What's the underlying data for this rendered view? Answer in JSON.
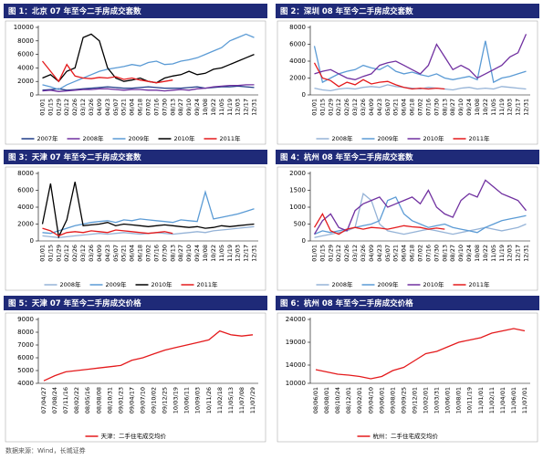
{
  "chart_data": [
    {
      "type": "line",
      "title": "图 1：北京 07 年至今二手房成交套数",
      "categories": [
        "01/01",
        "01/15",
        "01/29",
        "02/12",
        "02/26",
        "03/12",
        "03/26",
        "04/09",
        "04/23",
        "05/07",
        "05/21",
        "06/04",
        "06/18",
        "07/02",
        "07/16",
        "07/30",
        "08/13",
        "08/27",
        "09/10",
        "09/24",
        "10/08",
        "10/22",
        "11/05",
        "11/19",
        "12/03",
        "12/17",
        "12/31"
      ],
      "ylim": [
        0,
        10000
      ],
      "yticks": [
        0,
        2000,
        4000,
        6000,
        8000,
        10000
      ],
      "legend": "bottom",
      "series": [
        {
          "name": "2007年",
          "color": "#1f3c88",
          "values": [
            700,
            800,
            900,
            700,
            800,
            900,
            1000,
            1100,
            1200,
            1100,
            1000,
            1000,
            1100,
            1200,
            1100,
            1000,
            1000,
            1000,
            1100,
            1200,
            1000,
            1100,
            1200,
            1200,
            1300,
            1200,
            1100
          ]
        },
        {
          "name": "2008年",
          "color": "#7030a0",
          "values": [
            600,
            700,
            500,
            600,
            700,
            800,
            800,
            900,
            900,
            800,
            700,
            800,
            800,
            700,
            700,
            600,
            700,
            800,
            700,
            900,
            1000,
            1200,
            1300,
            1400,
            1400,
            1500,
            1500
          ]
        },
        {
          "name": "2009年",
          "color": "#5b9bd5",
          "values": [
            1500,
            1200,
            800,
            1500,
            2000,
            2500,
            3000,
            3500,
            3800,
            4000,
            4200,
            4500,
            4300,
            4800,
            5000,
            4500,
            4600,
            5000,
            5200,
            5500,
            6000,
            6500,
            7000,
            8000,
            8500,
            9000,
            8500
          ]
        },
        {
          "name": "2010年",
          "color": "#000000",
          "values": [
            2500,
            3000,
            2000,
            3500,
            4000,
            8500,
            9000,
            8000,
            4000,
            2500,
            2000,
            2200,
            2500,
            2000,
            1800,
            2500,
            2800,
            3000,
            3500,
            3000,
            3200,
            3800,
            4000,
            4500,
            5000,
            5500,
            6000
          ]
        },
        {
          "name": "2011年",
          "color": "#e41a1c",
          "values": [
            5000,
            3500,
            2000,
            4500,
            2800,
            2500,
            2400,
            2600,
            2500,
            2700,
            2300,
            2500,
            2200,
            2000,
            1800,
            2000,
            2200,
            null,
            null,
            null,
            null,
            null,
            null,
            null,
            null,
            null,
            null
          ]
        }
      ]
    },
    {
      "type": "line",
      "title": "图 2：深圳 08 年至今二手房成交套数",
      "categories": [
        "01/01",
        "01/15",
        "01/29",
        "02/12",
        "02/26",
        "03/12",
        "03/26",
        "04/09",
        "04/23",
        "05/07",
        "05/21",
        "06/04",
        "06/18",
        "07/02",
        "07/16",
        "07/30",
        "08/13",
        "08/27",
        "09/10",
        "09/24",
        "10/08",
        "10/22",
        "11/05",
        "11/19",
        "12/03",
        "12/17",
        "12/31"
      ],
      "ylim": [
        0,
        8000
      ],
      "yticks": [
        0,
        2000,
        4000,
        6000,
        8000
      ],
      "legend": "bottom",
      "series": [
        {
          "name": "2008年",
          "color": "#95b3d7",
          "values": [
            800,
            600,
            500,
            700,
            800,
            700,
            900,
            1000,
            900,
            1200,
            1000,
            900,
            800,
            700,
            900,
            800,
            700,
            600,
            800,
            900,
            700,
            800,
            700,
            1000,
            900,
            800,
            700
          ]
        },
        {
          "name": "2009年",
          "color": "#5b9bd5",
          "values": [
            5800,
            1500,
            2000,
            2500,
            2800,
            3000,
            3500,
            3200,
            3000,
            3500,
            2800,
            2500,
            2700,
            2400,
            2200,
            2500,
            2000,
            1800,
            2000,
            2200,
            1800,
            6400,
            1500,
            2000,
            2200,
            2500,
            2800
          ]
        },
        {
          "name": "2010年",
          "color": "#7030a0",
          "values": [
            2500,
            2800,
            3000,
            2500,
            2000,
            1800,
            2200,
            2500,
            3500,
            3800,
            4000,
            3500,
            3000,
            2500,
            3500,
            6000,
            4500,
            3000,
            3500,
            3000,
            2000,
            2500,
            3000,
            3500,
            4500,
            5000,
            7200
          ]
        },
        {
          "name": "2011年",
          "color": "#e41a1c",
          "values": [
            3800,
            2000,
            1700,
            1000,
            1500,
            1200,
            1800,
            1300,
            1500,
            1600,
            1200,
            900,
            700,
            800,
            700,
            800,
            700,
            null,
            null,
            null,
            null,
            null,
            null,
            null,
            null,
            null,
            null
          ]
        }
      ]
    },
    {
      "type": "line",
      "title": "图 3：天津 07 年至今二手房成交套数",
      "categories": [
        "01/01",
        "01/15",
        "01/29",
        "02/12",
        "02/26",
        "03/12",
        "03/26",
        "04/09",
        "04/23",
        "05/07",
        "05/21",
        "06/04",
        "06/18",
        "07/02",
        "07/16",
        "07/30",
        "08/13",
        "08/27",
        "09/10",
        "09/24",
        "10/08",
        "10/22",
        "11/05",
        "11/19",
        "12/03",
        "12/17",
        "12/31"
      ],
      "ylim": [
        0,
        8000
      ],
      "yticks": [
        0,
        2000,
        4000,
        6000,
        8000
      ],
      "legend": "bottom",
      "series": [
        {
          "name": "2008年",
          "color": "#95b3d7",
          "values": [
            600,
            500,
            400,
            500,
            600,
            700,
            800,
            900,
            800,
            900,
            1000,
            900,
            800,
            900,
            1000,
            900,
            800,
            900,
            1000,
            1100,
            1000,
            1200,
            1300,
            1400,
            1500,
            1600,
            1700
          ]
        },
        {
          "name": "2009年",
          "color": "#5b9bd5",
          "values": [
            1000,
            900,
            1200,
            1500,
            1800,
            2000,
            2200,
            2300,
            2400,
            2200,
            2500,
            2400,
            2600,
            2500,
            2400,
            2300,
            2200,
            2500,
            2400,
            2300,
            5800,
            2600,
            2800,
            3000,
            3200,
            3500,
            3800
          ]
        },
        {
          "name": "2010年",
          "color": "#000000",
          "values": [
            2000,
            6800,
            500,
            2500,
            7000,
            1800,
            1900,
            2000,
            2200,
            1800,
            2000,
            1900,
            1800,
            1700,
            1800,
            1900,
            1800,
            1700,
            1600,
            1700,
            1500,
            1600,
            1800,
            1700,
            1800,
            1900,
            2000
          ]
        },
        {
          "name": "2011年",
          "color": "#e41a1c",
          "values": [
            1500,
            1200,
            600,
            1000,
            1100,
            1000,
            1200,
            1100,
            1000,
            1300,
            1200,
            1100,
            1000,
            900,
            1000,
            1100,
            900,
            null,
            null,
            null,
            null,
            null,
            null,
            null,
            null,
            null,
            null
          ]
        }
      ]
    },
    {
      "type": "line",
      "title": "图 4：杭州 08 年至今二手房成交套数",
      "categories": [
        "01/01",
        "01/15",
        "01/29",
        "02/12",
        "02/26",
        "03/12",
        "03/26",
        "04/09",
        "04/23",
        "05/07",
        "05/21",
        "06/04",
        "06/18",
        "07/02",
        "07/16",
        "07/30",
        "08/13",
        "08/27",
        "09/10",
        "09/24",
        "10/08",
        "10/22",
        "11/05",
        "11/19",
        "12/03",
        "12/17",
        "12/31"
      ],
      "ylim": [
        0,
        2000
      ],
      "yticks": [
        0,
        500,
        1000,
        1500,
        2000
      ],
      "legend": "bottom",
      "series": [
        {
          "name": "2008年",
          "color": "#95b3d7",
          "values": [
            100,
            150,
            200,
            250,
            300,
            400,
            1400,
            1200,
            500,
            300,
            250,
            200,
            250,
            300,
            350,
            300,
            250,
            200,
            250,
            300,
            350,
            400,
            350,
            300,
            350,
            400,
            500
          ]
        },
        {
          "name": "2009年",
          "color": "#5b9bd5",
          "values": [
            200,
            300,
            250,
            300,
            350,
            400,
            450,
            500,
            600,
            1200,
            1300,
            800,
            600,
            500,
            400,
            450,
            500,
            400,
            350,
            300,
            250,
            400,
            500,
            600,
            650,
            700,
            750
          ]
        },
        {
          "name": "2010年",
          "color": "#7030a0",
          "values": [
            200,
            600,
            800,
            400,
            300,
            900,
            1100,
            1200,
            1300,
            1000,
            1100,
            1200,
            1300,
            1100,
            1500,
            1000,
            800,
            700,
            1200,
            1400,
            1300,
            1800,
            1600,
            1400,
            1300,
            1200,
            900
          ]
        },
        {
          "name": "2011年",
          "color": "#e41a1c",
          "values": [
            400,
            800,
            300,
            200,
            350,
            400,
            350,
            400,
            380,
            350,
            400,
            450,
            420,
            400,
            350,
            380,
            350,
            null,
            null,
            null,
            null,
            null,
            null,
            null,
            null,
            null,
            null
          ]
        }
      ]
    },
    {
      "type": "line",
      "title": "图 5：天津 07 年至今二手房成交价格",
      "categories": [
        "07/04/27",
        "07/08/24",
        "07/11/16",
        "08/02/22",
        "08/05/16",
        "08/08/08",
        "08/10/31",
        "09/01/23",
        "09/04/17",
        "09/07/10",
        "09/10/02",
        "09/12/25",
        "10/03/19",
        "10/06/11",
        "10/09/03",
        "10/11/26",
        "11/02/18",
        "11/05/13",
        "11/07/08",
        "11/07/29"
      ],
      "ylim": [
        4000,
        9000
      ],
      "yticks": [
        4000,
        5000,
        6000,
        7000,
        8000,
        9000
      ],
      "legend": "bottom",
      "series": [
        {
          "name": "天津：二手住宅成交均价",
          "color": "#e41a1c",
          "values": [
            4200,
            4600,
            4900,
            5000,
            5100,
            5200,
            5300,
            5400,
            5800,
            6000,
            6300,
            6600,
            6800,
            7000,
            7200,
            7400,
            8100,
            7800,
            7700,
            7800
          ]
        }
      ]
    },
    {
      "type": "line",
      "title": "图 6：杭州 08 年至今二手房成交价格",
      "categories": [
        "08/06/01",
        "08/08/01",
        "08/10/24",
        "08/12/01",
        "09/02/01",
        "09/04/10",
        "09/06/01",
        "09/08/01",
        "09/09/25",
        "09/12/01",
        "10/02/01",
        "10/03/31",
        "10/06/01",
        "10/08/01",
        "10/11/19",
        "11/01/01",
        "11/02/11",
        "11/04/01",
        "11/06/01",
        "11/07/01"
      ],
      "ylim": [
        10000,
        24000
      ],
      "yticks": [
        10000,
        14000,
        19000,
        24000
      ],
      "legend": "bottom",
      "series": [
        {
          "name": "杭州：二手住宅成交均价",
          "color": "#e41a1c",
          "values": [
            13000,
            12500,
            12000,
            11800,
            11500,
            11000,
            11500,
            12800,
            13500,
            15000,
            16500,
            17000,
            18000,
            19000,
            19500,
            20000,
            21000,
            21500,
            22000,
            21500
          ]
        }
      ]
    }
  ],
  "footer": "数据来源：Wind，长城证券"
}
